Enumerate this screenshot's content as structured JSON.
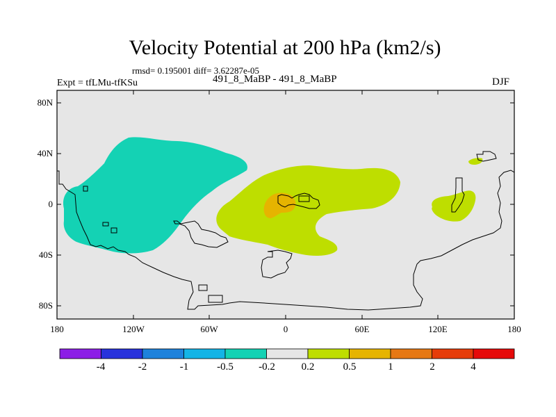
{
  "title": "Velocity Potential at 200 hPa (km2/s)",
  "stats": "rmsd= 0.195001 diff= 3.62287e-05",
  "expt": "Expt = tfLMu-tfKSu",
  "subtitle": "491_8_MaBP - 491_8_MaBP",
  "season": "DJF",
  "map": {
    "lat_range": [
      -90,
      90
    ],
    "lon_range": [
      -180,
      180
    ],
    "lat_ticks": [
      {
        "value": 80,
        "label": "80N"
      },
      {
        "value": 40,
        "label": "40N"
      },
      {
        "value": 0,
        "label": "0"
      },
      {
        "value": -40,
        "label": "40S"
      },
      {
        "value": -80,
        "label": "80S"
      }
    ],
    "lon_ticks": [
      {
        "value": -180,
        "label": "180"
      },
      {
        "value": -120,
        "label": "120W"
      },
      {
        "value": -60,
        "label": "60W"
      },
      {
        "value": 0,
        "label": "0"
      },
      {
        "value": 60,
        "label": "60E"
      },
      {
        "value": 120,
        "label": "120E"
      },
      {
        "value": 180,
        "label": "180"
      }
    ],
    "background_color": "#e6e6e6"
  },
  "colorbar": {
    "colors": [
      "#8c1ee6",
      "#2832dc",
      "#1e82dc",
      "#14b4e6",
      "#14d2b4",
      "#e6e6e6",
      "#bede00",
      "#e6b400",
      "#e67814",
      "#e63c0a",
      "#e60a0a"
    ],
    "labels": [
      "-4",
      "-2",
      "-1",
      "-0.5",
      "-0.2",
      "0.2",
      "0.5",
      "1",
      "2",
      "4"
    ]
  },
  "contours": [
    {
      "name": "pacific-negative-region",
      "level": "-0.5 to -0.2",
      "color": "#14d2b4"
    },
    {
      "name": "atlantic-africa-positive-region",
      "level": "0.2 to 0.5",
      "color": "#bede00"
    },
    {
      "name": "africa-core-region",
      "level": "0.5 to 1",
      "color": "#e6b400"
    },
    {
      "name": "maritime-positive-region",
      "level": "0.2 to 0.5",
      "color": "#bede00"
    },
    {
      "name": "east-asia-positive-patch",
      "level": "0.2 to 0.5",
      "color": "#bede00"
    }
  ]
}
